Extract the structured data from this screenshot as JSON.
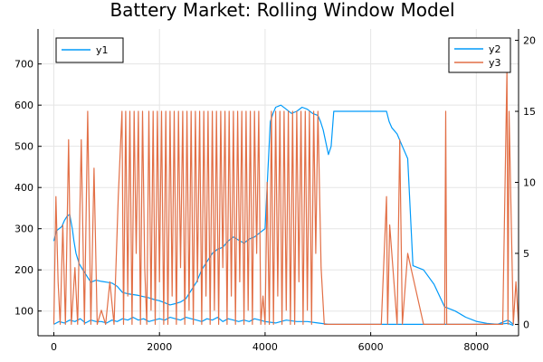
{
  "chart_data": {
    "type": "line",
    "title": "Battery Market: Rolling Window Model",
    "grid": true,
    "x_ticks": [
      0,
      2000,
      4000,
      6000,
      8000
    ],
    "xlim": [
      -300,
      8800
    ],
    "y_left": {
      "ticks": [
        100,
        200,
        300,
        400,
        500,
        600,
        700
      ],
      "ylim": [
        40,
        785
      ]
    },
    "y_right": {
      "ticks": [
        0,
        5,
        10,
        15,
        20
      ],
      "ylim": [
        -0.8,
        20.8
      ]
    },
    "legends": [
      {
        "placement": "top-left",
        "entries": [
          "y1"
        ]
      },
      {
        "placement": "top-right",
        "entries": [
          "y2",
          "y3"
        ]
      }
    ],
    "colors": {
      "y1": "#009af9",
      "y2": "#009af9",
      "y3": "#e26f46",
      "grid": "#e5e5e5",
      "axis": "#000000"
    },
    "series": [
      {
        "name": "y1",
        "axis": "left",
        "x": [
          0,
          50,
          100,
          150,
          200,
          250,
          300,
          320,
          350,
          380,
          420,
          480,
          550,
          600,
          650,
          700,
          800,
          900,
          1000,
          1100,
          1200,
          1300,
          1400,
          1500,
          1600,
          1700,
          1800,
          1900,
          2000,
          2100,
          2200,
          2300,
          2400,
          2500,
          2600,
          2700,
          2800,
          2900,
          3000,
          3100,
          3200,
          3300,
          3400,
          3500,
          3600,
          3700,
          3800,
          3900,
          4000,
          4100,
          4150,
          4200,
          4300,
          4400,
          4500,
          4600,
          4700,
          4800,
          4900,
          5000,
          5050,
          5100,
          5200,
          5250,
          5300,
          5600,
          6000,
          6300,
          6350,
          6400,
          6500,
          6600,
          6700,
          6800,
          7000,
          7200,
          7400,
          7600,
          7800,
          8000,
          8200,
          8400,
          8600,
          8700
        ],
        "values": [
          270,
          295,
          300,
          305,
          320,
          330,
          335,
          320,
          300,
          270,
          240,
          215,
          200,
          190,
          180,
          170,
          175,
          172,
          170,
          168,
          160,
          145,
          142,
          140,
          138,
          135,
          132,
          128,
          125,
          120,
          115,
          118,
          122,
          130,
          150,
          170,
          200,
          220,
          240,
          250,
          255,
          270,
          280,
          272,
          265,
          275,
          280,
          290,
          300,
          560,
          580,
          595,
          600,
          590,
          580,
          585,
          595,
          590,
          580,
          575,
          560,
          540,
          480,
          500,
          585,
          585,
          585,
          585,
          560,
          545,
          530,
          500,
          470,
          210,
          200,
          165,
          110,
          100,
          85,
          75,
          70,
          68,
          70,
          65
        ]
      },
      {
        "name": "y2",
        "axis": "right",
        "x": [
          0,
          100,
          200,
          300,
          400,
          500,
          600,
          700,
          800,
          900,
          1000,
          1100,
          1200,
          1300,
          1400,
          1500,
          1600,
          1700,
          1800,
          1900,
          2000,
          2100,
          2200,
          2300,
          2400,
          2500,
          2600,
          2700,
          2800,
          2900,
          3000,
          3100,
          3200,
          3300,
          3400,
          3500,
          3600,
          3700,
          3800,
          3900,
          4000,
          4200,
          4400,
          4600,
          4800,
          5000,
          5200,
          5400,
          5600,
          5800,
          6000,
          6200,
          6400,
          6600,
          6800,
          7000,
          7200,
          7400,
          7600,
          7800,
          8000,
          8200,
          8400,
          8600,
          8700
        ],
        "values": [
          0,
          0.2,
          0.1,
          0.3,
          0.2,
          0.4,
          0.1,
          0.3,
          0.2,
          0.2,
          0.1,
          0.3,
          0.2,
          0.4,
          0.3,
          0.5,
          0.3,
          0.4,
          0.2,
          0.3,
          0.4,
          0.3,
          0.5,
          0.4,
          0.3,
          0.5,
          0.4,
          0.3,
          0.2,
          0.4,
          0.3,
          0.5,
          0.2,
          0.4,
          0.3,
          0.2,
          0.3,
          0.2,
          0.4,
          0.3,
          0.2,
          0.1,
          0.3,
          0.2,
          0.2,
          0.1,
          0,
          0,
          0,
          0,
          0,
          0,
          0,
          0,
          0,
          0,
          0,
          0,
          0,
          0,
          0,
          0,
          0,
          0.3,
          0
        ]
      },
      {
        "name": "y3",
        "axis": "right",
        "x": [
          0,
          40,
          80,
          120,
          170,
          220,
          280,
          330,
          400,
          450,
          520,
          580,
          640,
          700,
          760,
          820,
          900,
          980,
          1060,
          1140,
          1220,
          1290,
          1320,
          1360,
          1400,
          1440,
          1480,
          1520,
          1560,
          1600,
          1640,
          1680,
          1720,
          1760,
          1800,
          1840,
          1880,
          1920,
          1960,
          2000,
          2040,
          2080,
          2120,
          2160,
          2200,
          2240,
          2280,
          2320,
          2360,
          2400,
          2440,
          2480,
          2520,
          2560,
          2600,
          2640,
          2680,
          2720,
          2760,
          2800,
          2840,
          2880,
          2920,
          2960,
          3000,
          3040,
          3080,
          3120,
          3160,
          3200,
          3240,
          3280,
          3320,
          3360,
          3400,
          3440,
          3480,
          3520,
          3560,
          3600,
          3640,
          3680,
          3720,
          3760,
          3800,
          3840,
          3880,
          3920,
          3960,
          4000,
          4040,
          4080,
          4120,
          4160,
          4200,
          4240,
          4280,
          4320,
          4360,
          4400,
          4440,
          4480,
          4520,
          4560,
          4600,
          4640,
          4680,
          4720,
          4760,
          4800,
          4840,
          4880,
          4920,
          4960,
          5000,
          5060,
          5120,
          5200,
          5400,
          5800,
          6200,
          6300,
          6320,
          6360,
          6500,
          6550,
          6600,
          6700,
          7000,
          7400,
          7420,
          7440,
          7800,
          8500,
          8580,
          8600,
          8620,
          8700,
          8750,
          8800
        ],
        "values": [
          0,
          9,
          3,
          0,
          7,
          0,
          13,
          0,
          4,
          0,
          13,
          0,
          15,
          0,
          11,
          0,
          1,
          0,
          3,
          0,
          9,
          15,
          0,
          15,
          2,
          15,
          0,
          15,
          5,
          15,
          0,
          15,
          4,
          0,
          15,
          1,
          15,
          0,
          15,
          3,
          15,
          0,
          15,
          0,
          15,
          2,
          15,
          0,
          15,
          4,
          15,
          0,
          15,
          1,
          15,
          0,
          15,
          3,
          15,
          0,
          15,
          2,
          15,
          0,
          15,
          1,
          15,
          0,
          15,
          4,
          15,
          0,
          15,
          2,
          15,
          0,
          15,
          3,
          15,
          0,
          15,
          1,
          15,
          0,
          15,
          5,
          15,
          0,
          2,
          0,
          10,
          0,
          15,
          0,
          15,
          2,
          15,
          0,
          15,
          1,
          15,
          0,
          15,
          0,
          15,
          3,
          15,
          0,
          15,
          1,
          15,
          0,
          15,
          5,
          15,
          4,
          0,
          0,
          0,
          0,
          0,
          9,
          0,
          7,
          0,
          13,
          0,
          5,
          0,
          0,
          15,
          0,
          0,
          0,
          18,
          0,
          15,
          0,
          3,
          0
        ]
      }
    ]
  }
}
